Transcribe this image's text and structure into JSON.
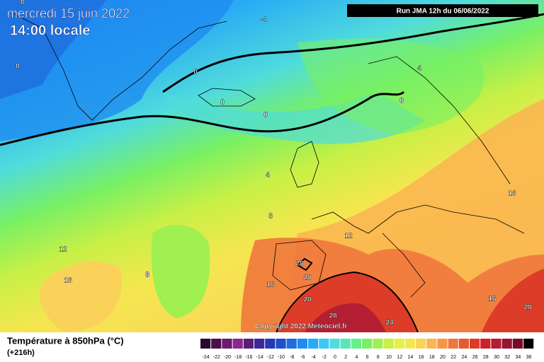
{
  "header": {
    "date": "mercredi 15 juin 2022",
    "time": "14:00 locale",
    "run": "Run JMA 12h du 06/06/2022"
  },
  "copyright": "Copyright 2022 Meteociel.fr",
  "footer": {
    "title": "Température à 850hPa (°C)",
    "lead": "(+216h)"
  },
  "contour_labels": [
    -8,
    -4,
    0,
    0,
    0,
    0,
    0,
    4,
    4,
    8,
    12,
    12,
    8,
    16,
    16,
    20,
    20,
    20,
    28,
    24,
    16,
    16,
    20
  ],
  "scale": {
    "labels": [
      -24,
      -22,
      -20,
      -18,
      -16,
      -14,
      -12,
      -10,
      -8,
      -6,
      -4,
      -2,
      0,
      2,
      4,
      6,
      8,
      10,
      12,
      14,
      16,
      18,
      20,
      22,
      24,
      26,
      28,
      30,
      32,
      34,
      36
    ],
    "colors": [
      "#2a0a2a",
      "#4b0f4b",
      "#6e1a6e",
      "#8c288c",
      "#5a1e78",
      "#3c2896",
      "#2837b4",
      "#1e50c8",
      "#1e6edc",
      "#1e8cf0",
      "#28aaf5",
      "#3cc8f5",
      "#50dcdc",
      "#5ae6b4",
      "#64f08c",
      "#78f064",
      "#a0f050",
      "#c8f046",
      "#e6f046",
      "#f5e650",
      "#fad25a",
      "#fab450",
      "#f59646",
      "#f0783c",
      "#e65a32",
      "#dc3c28",
      "#d21e28",
      "#b41e32",
      "#961432",
      "#780a28",
      "#000000"
    ]
  }
}
